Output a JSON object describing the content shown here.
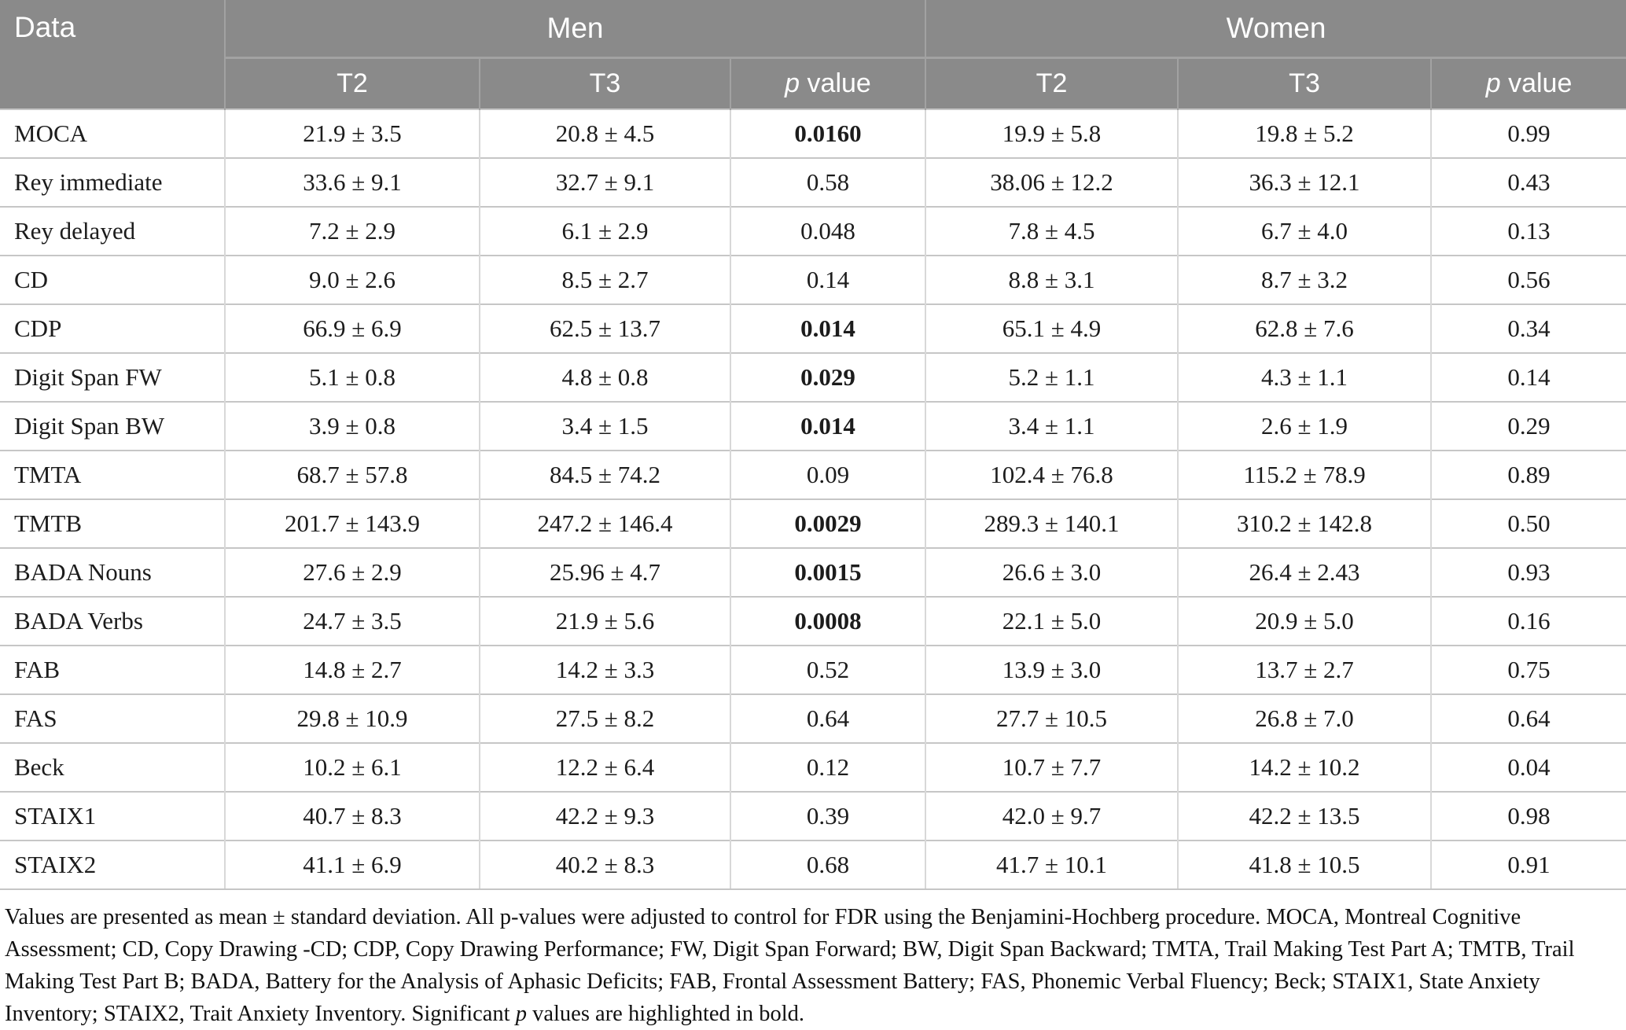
{
  "table": {
    "header": {
      "data": "Data",
      "men": "Men",
      "women": "Women",
      "t2": "T2",
      "t3": "T3",
      "p_italic": "p",
      "p_rest": " value"
    },
    "rows": [
      {
        "label": "MOCA",
        "men_t2": "21.9 ± 3.5",
        "men_t3": "20.8 ± 4.5",
        "men_p": "0.0160",
        "men_p_bold": true,
        "women_t2": "19.9 ± 5.8",
        "women_t3": "19.8 ± 5.2",
        "women_p": "0.99",
        "women_p_bold": false
      },
      {
        "label": "Rey immediate",
        "men_t2": "33.6 ± 9.1",
        "men_t3": "32.7 ± 9.1",
        "men_p": "0.58",
        "men_p_bold": false,
        "women_t2": "38.06 ± 12.2",
        "women_t3": "36.3 ± 12.1",
        "women_p": "0.43",
        "women_p_bold": false
      },
      {
        "label": "Rey delayed",
        "men_t2": "7.2 ± 2.9",
        "men_t3": "6.1 ± 2.9",
        "men_p": "0.048",
        "men_p_bold": false,
        "women_t2": "7.8 ± 4.5",
        "women_t3": "6.7 ± 4.0",
        "women_p": "0.13",
        "women_p_bold": false
      },
      {
        "label": "CD",
        "men_t2": "9.0 ± 2.6",
        "men_t3": "8.5 ± 2.7",
        "men_p": "0.14",
        "men_p_bold": false,
        "women_t2": "8.8 ± 3.1",
        "women_t3": "8.7 ± 3.2",
        "women_p": "0.56",
        "women_p_bold": false
      },
      {
        "label": "CDP",
        "men_t2": "66.9 ± 6.9",
        "men_t3": "62.5 ± 13.7",
        "men_p": "0.014",
        "men_p_bold": true,
        "women_t2": "65.1 ± 4.9",
        "women_t3": "62.8 ± 7.6",
        "women_p": "0.34",
        "women_p_bold": false
      },
      {
        "label": "Digit Span FW",
        "men_t2": "5.1 ± 0.8",
        "men_t3": "4.8 ± 0.8",
        "men_p": "0.029",
        "men_p_bold": true,
        "women_t2": "5.2 ± 1.1",
        "women_t3": "4.3 ± 1.1",
        "women_p": "0.14",
        "women_p_bold": false
      },
      {
        "label": "Digit Span BW",
        "men_t2": "3.9 ± 0.8",
        "men_t3": "3.4 ± 1.5",
        "men_p": "0.014",
        "men_p_bold": true,
        "women_t2": "3.4 ± 1.1",
        "women_t3": "2.6 ± 1.9",
        "women_p": "0.29",
        "women_p_bold": false
      },
      {
        "label": "TMTA",
        "men_t2": "68.7 ± 57.8",
        "men_t3": "84.5 ± 74.2",
        "men_p": "0.09",
        "men_p_bold": false,
        "women_t2": "102.4 ± 76.8",
        "women_t3": "115.2 ± 78.9",
        "women_p": "0.89",
        "women_p_bold": false
      },
      {
        "label": "TMTB",
        "men_t2": "201.7 ± 143.9",
        "men_t3": "247.2 ± 146.4",
        "men_p": "0.0029",
        "men_p_bold": true,
        "women_t2": "289.3 ± 140.1",
        "women_t3": "310.2 ± 142.8",
        "women_p": "0.50",
        "women_p_bold": false
      },
      {
        "label": "BADA Nouns",
        "men_t2": "27.6 ± 2.9",
        "men_t3": "25.96 ± 4.7",
        "men_p": "0.0015",
        "men_p_bold": true,
        "women_t2": "26.6 ± 3.0",
        "women_t3": "26.4 ± 2.43",
        "women_p": "0.93",
        "women_p_bold": false
      },
      {
        "label": "BADA Verbs",
        "men_t2": "24.7 ± 3.5",
        "men_t3": "21.9 ± 5.6",
        "men_p": "0.0008",
        "men_p_bold": true,
        "women_t2": "22.1 ± 5.0",
        "women_t3": "20.9 ± 5.0",
        "women_p": "0.16",
        "women_p_bold": false
      },
      {
        "label": "FAB",
        "men_t2": "14.8 ± 2.7",
        "men_t3": "14.2 ± 3.3",
        "men_p": "0.52",
        "men_p_bold": false,
        "women_t2": "13.9 ± 3.0",
        "women_t3": "13.7 ± 2.7",
        "women_p": "0.75",
        "women_p_bold": false
      },
      {
        "label": "FAS",
        "men_t2": "29.8 ± 10.9",
        "men_t3": "27.5 ± 8.2",
        "men_p": "0.64",
        "men_p_bold": false,
        "women_t2": "27.7 ± 10.5",
        "women_t3": "26.8 ± 7.0",
        "women_p": "0.64",
        "women_p_bold": false
      },
      {
        "label": "Beck",
        "men_t2": "10.2 ± 6.1",
        "men_t3": "12.2 ± 6.4",
        "men_p": "0.12",
        "men_p_bold": false,
        "women_t2": "10.7 ± 7.7",
        "women_t3": "14.2 ± 10.2",
        "women_p": "0.04",
        "women_p_bold": false
      },
      {
        "label": "STAIX1",
        "men_t2": "40.7 ± 8.3",
        "men_t3": "42.2 ± 9.3",
        "men_p": "0.39",
        "men_p_bold": false,
        "women_t2": "42.0 ± 9.7",
        "women_t3": "42.2 ± 13.5",
        "women_p": "0.98",
        "women_p_bold": false
      },
      {
        "label": "STAIX2",
        "men_t2": "41.1 ± 6.9",
        "men_t3": "40.2 ± 8.3",
        "men_p": "0.68",
        "men_p_bold": false,
        "women_t2": "41.7 ± 10.1",
        "women_t3": "41.8 ± 10.5",
        "women_p": "0.91",
        "women_p_bold": false
      }
    ],
    "footnote": {
      "parts": [
        "Values are presented as mean ± standard deviation. All p-values were adjusted to control for FDR using the Benjamini-Hochberg procedure. MOCA, Montreal Cognitive Assessment; CD, Copy Drawing -CD; CDP, Copy Drawing Performance; FW, Digit Span Forward; BW, Digit Span Backward; TMTA, Trail Making Test Part A; TMTB, Trail Making Test Part B; BADA, Battery for the Analysis of Aphasic Deficits; FAB, Frontal Assessment Battery; FAS, Phonemic Verbal Fluency; Beck; STAIX1, State Anxiety Inventory; STAIX2, Trait Anxiety Inventory. Significant ",
        "p",
        " values are highlighted in bold."
      ]
    },
    "colors": {
      "header_bg": "#8a8a8a",
      "header_text": "#ffffff",
      "header_line": "#a2a2a2",
      "row_line": "#c6c6c6",
      "column_line": "#d8d8d8",
      "body_text": "#1c1c1c"
    }
  }
}
